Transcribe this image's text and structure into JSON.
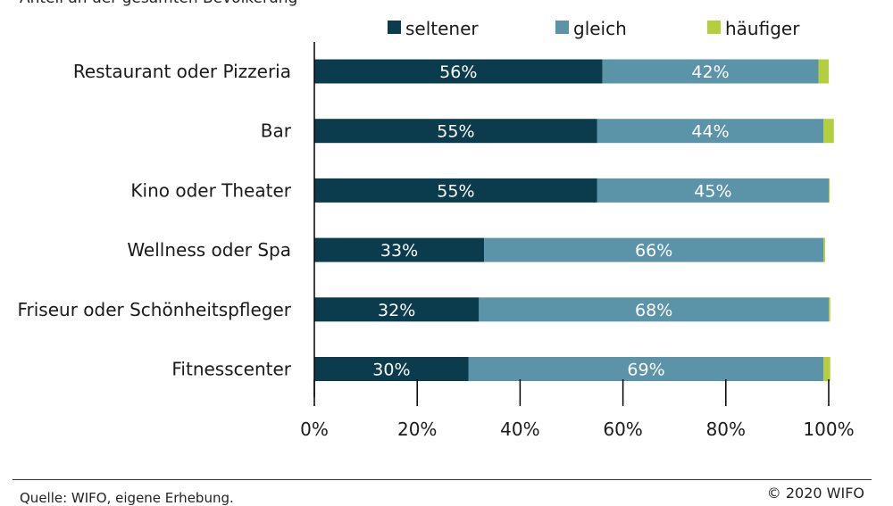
{
  "header": {
    "subtitle": "Anteil an der gesamten Bevölkerung"
  },
  "footer": {
    "source": "Quelle: WIFO, eigene Erhebung.",
    "copyright": "© 2020 WIFO"
  },
  "chart_data": {
    "type": "bar",
    "orientation": "horizontal",
    "stacked": true,
    "categories": [
      "Restaurant oder Pizzeria",
      "Bar",
      "Kino oder Theater",
      "Wellness oder Spa",
      "Friseur oder Schönheitspfleger",
      "Fitnesscenter"
    ],
    "series": [
      {
        "name": "seltener",
        "color": "#0b3c4d",
        "values": [
          56,
          55,
          55,
          33,
          32,
          30
        ],
        "labels": [
          "56%",
          "55%",
          "55%",
          "33%",
          "32%",
          "30%"
        ]
      },
      {
        "name": "gleich",
        "color": "#5b93a9",
        "values": [
          42,
          44,
          45,
          66,
          68,
          69
        ],
        "labels": [
          "42%",
          "44%",
          "45%",
          "66%",
          "68%",
          "69%"
        ]
      },
      {
        "name": "häufiger",
        "color": "#b3cf3e",
        "values": [
          2,
          2,
          0.2,
          0.3,
          0.3,
          1.3
        ],
        "labels": []
      }
    ],
    "xlim": [
      0,
      100
    ],
    "ticks": [
      "0%",
      "20%",
      "40%",
      "60%",
      "80%",
      "100%"
    ],
    "tick_values": [
      0,
      20,
      40,
      60,
      80,
      100
    ],
    "legend_position": "top",
    "grid": false
  }
}
